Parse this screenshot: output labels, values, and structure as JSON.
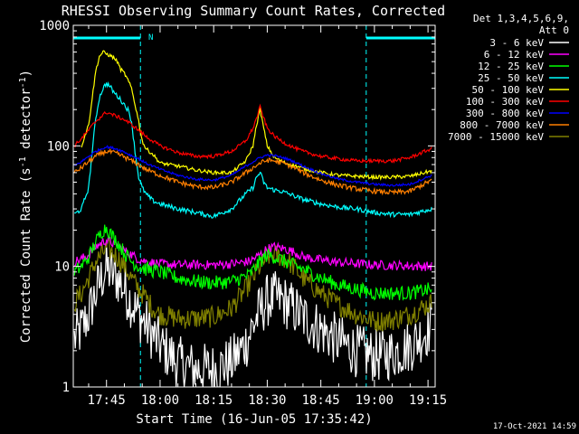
{
  "chart_data": {
    "type": "line",
    "title": "RHESSI Observing Summary Count Rates, Corrected",
    "xlabel": "Start Time (16-Jun-05 17:35:42)",
    "ylabel_main": "Corrected Count Rate (s",
    "ylabel_sup1": "-1",
    "ylabel_mid": " detector",
    "ylabel_sup2": "-1",
    "ylabel_end": ")",
    "y_scale": "log",
    "ylim": [
      1,
      1000
    ],
    "xlim_minutes": [
      1055.7,
      1157
    ],
    "grid": false,
    "x_ticks": [
      {
        "t": 1065,
        "label": "17:45"
      },
      {
        "t": 1080,
        "label": "18:00"
      },
      {
        "t": 1095,
        "label": "18:15"
      },
      {
        "t": 1110,
        "label": "18:30"
      },
      {
        "t": 1125,
        "label": "18:45"
      },
      {
        "t": 1140,
        "label": "19:00"
      },
      {
        "t": 1155,
        "label": "19:15"
      }
    ],
    "y_ticks": [
      {
        "v": 1,
        "label": "1"
      },
      {
        "v": 10,
        "label": "10"
      },
      {
        "v": 100,
        "label": "100"
      },
      {
        "v": 1000,
        "label": "1000"
      }
    ],
    "legend_header": [
      "Det 1,3,4,5,6,9,",
      "Att 0"
    ],
    "legend_placement": "right",
    "timestamp": "17-Oct-2021 14:59",
    "night_intervals": [
      [
        1055.7,
        1074.5
      ],
      [
        1137.7,
        1157
      ]
    ],
    "night_bar_color": "#00ffff",
    "saa_marker": {
      "t": 1075.7,
      "label": "N"
    },
    "series": [
      {
        "name": "3 - 6 keV",
        "color": "#ffffff",
        "x": [
          1056,
          1058,
          1060,
          1062,
          1064,
          1065,
          1066,
          1068,
          1070,
          1072,
          1074,
          1076,
          1078,
          1080,
          1085,
          1090,
          1095,
          1100,
          1104,
          1106,
          1108,
          1110,
          1112,
          1114,
          1116,
          1118,
          1120,
          1125,
          1130,
          1135,
          1140,
          1145,
          1150,
          1154,
          1156
        ],
        "y": [
          2.5,
          3,
          4,
          6,
          8.5,
          9.5,
          9,
          8,
          6.5,
          5,
          4,
          3.3,
          2.7,
          2.2,
          1.6,
          1.4,
          1.4,
          1.6,
          2.3,
          3.2,
          4.3,
          5.2,
          5.5,
          5.3,
          4.8,
          4.3,
          3.8,
          3,
          2.4,
          2,
          1.8,
          1.9,
          2.2,
          2.8,
          3.2
        ]
      },
      {
        "name": "6 - 12 keV",
        "color": "#ff00ff",
        "x": [
          1056,
          1058,
          1060,
          1062,
          1064,
          1065,
          1066,
          1068,
          1070,
          1072,
          1074,
          1076,
          1080,
          1085,
          1090,
          1095,
          1100,
          1105,
          1108,
          1110,
          1112,
          1115,
          1118,
          1120,
          1125,
          1130,
          1140,
          1150,
          1156
        ],
        "y": [
          11,
          11.5,
          12.5,
          14.5,
          16,
          16.5,
          16,
          15,
          13.5,
          12.5,
          11.5,
          11,
          10.5,
          10.3,
          10.3,
          10.3,
          10.5,
          11,
          12.5,
          14,
          14.5,
          14,
          13,
          12,
          11.3,
          10.8,
          10.3,
          10.1,
          10
        ]
      },
      {
        "name": "12 - 25 keV",
        "color": "#00ff00",
        "x": [
          1056,
          1058,
          1060,
          1062,
          1064,
          1065,
          1066,
          1068,
          1070,
          1072,
          1074,
          1076,
          1080,
          1085,
          1090,
          1095,
          1100,
          1105,
          1108,
          1110,
          1112,
          1115,
          1118,
          1120,
          1125,
          1130,
          1140,
          1150,
          1156
        ],
        "y": [
          9,
          10,
          12,
          16,
          20,
          21,
          19,
          16,
          13,
          11,
          10,
          9.5,
          9,
          8,
          7.5,
          7.3,
          7.5,
          8.5,
          11,
          12.5,
          12,
          11,
          10,
          9.5,
          8,
          7,
          6,
          6,
          6.5
        ]
      },
      {
        "name": "25 - 50 keV",
        "color": "#00ffff",
        "x": [
          1056,
          1058,
          1060,
          1061,
          1062,
          1063,
          1064,
          1065,
          1066,
          1067,
          1068,
          1069,
          1070,
          1071,
          1072,
          1073,
          1074,
          1075,
          1076,
          1078,
          1080,
          1085,
          1090,
          1095,
          1100,
          1104,
          1106,
          1107,
          1108,
          1109,
          1110,
          1112,
          1114,
          1116,
          1118,
          1120,
          1125,
          1130,
          1135,
          1140,
          1145,
          1150,
          1156
        ],
        "y": [
          27,
          30,
          45,
          90,
          170,
          250,
          300,
          330,
          310,
          280,
          260,
          240,
          220,
          200,
          160,
          90,
          55,
          45,
          40,
          35,
          33,
          30,
          28,
          26,
          30,
          40,
          45,
          55,
          60,
          50,
          45,
          43,
          42,
          40,
          38,
          36,
          33,
          31,
          30,
          28,
          27,
          27,
          30
        ]
      },
      {
        "name": "50 - 100 keV",
        "color": "#ffff00",
        "x": [
          1058,
          1060,
          1061,
          1062,
          1063,
          1064,
          1065,
          1066,
          1067,
          1068,
          1069,
          1070,
          1071,
          1072,
          1073,
          1074,
          1075,
          1076,
          1078,
          1080,
          1085,
          1090,
          1095,
          1100,
          1104,
          1106,
          1107,
          1108,
          1109,
          1110,
          1112,
          1115,
          1118,
          1120,
          1125,
          1130,
          1135,
          1140,
          1145,
          1150,
          1156
        ],
        "y": [
          100,
          150,
          250,
          420,
          550,
          600,
          580,
          560,
          540,
          500,
          430,
          400,
          350,
          300,
          220,
          160,
          110,
          95,
          85,
          72,
          68,
          63,
          60,
          60,
          75,
          100,
          150,
          200,
          140,
          100,
          80,
          72,
          68,
          65,
          60,
          57,
          56,
          55,
          55,
          56,
          62
        ]
      },
      {
        "name": "100 - 300 keV",
        "color": "#ff0000",
        "x": [
          1056,
          1058,
          1060,
          1062,
          1064,
          1065,
          1066,
          1068,
          1070,
          1072,
          1074,
          1076,
          1080,
          1085,
          1090,
          1095,
          1100,
          1104,
          1106,
          1107,
          1108,
          1109,
          1110,
          1112,
          1115,
          1118,
          1120,
          1125,
          1130,
          1135,
          1140,
          1145,
          1150,
          1156
        ],
        "y": [
          100,
          115,
          135,
          160,
          180,
          190,
          185,
          175,
          165,
          150,
          135,
          120,
          100,
          88,
          82,
          82,
          90,
          110,
          140,
          170,
          210,
          170,
          140,
          120,
          105,
          95,
          90,
          82,
          78,
          75,
          75,
          75,
          80,
          95
        ]
      },
      {
        "name": "300 - 800 keV",
        "color": "#0000ff",
        "x": [
          1056,
          1058,
          1060,
          1062,
          1064,
          1065,
          1066,
          1068,
          1070,
          1072,
          1074,
          1076,
          1080,
          1085,
          1090,
          1095,
          1100,
          1104,
          1108,
          1110,
          1112,
          1115,
          1118,
          1120,
          1125,
          1130,
          1135,
          1140,
          1145,
          1150,
          1156
        ],
        "y": [
          68,
          74,
          82,
          90,
          96,
          98,
          97,
          94,
          89,
          83,
          78,
          72,
          64,
          57,
          53,
          52,
          57,
          68,
          80,
          84,
          83,
          79,
          73,
          68,
          59,
          53,
          50,
          48,
          47,
          48,
          57
        ]
      },
      {
        "name": "800 - 7000 keV",
        "color": "#ff7f00",
        "x": [
          1056,
          1058,
          1060,
          1062,
          1064,
          1065,
          1066,
          1068,
          1070,
          1072,
          1074,
          1076,
          1080,
          1085,
          1090,
          1095,
          1100,
          1104,
          1108,
          1110,
          1112,
          1115,
          1118,
          1120,
          1125,
          1130,
          1135,
          1140,
          1145,
          1150,
          1156
        ],
        "y": [
          60,
          66,
          74,
          82,
          88,
          90,
          89,
          86,
          81,
          75,
          70,
          64,
          57,
          50,
          46,
          45,
          50,
          60,
          72,
          76,
          75,
          71,
          65,
          60,
          52,
          47,
          44,
          42,
          41,
          42,
          52
        ]
      },
      {
        "name": "7000 - 15000 keV",
        "color": "#808000",
        "x": [
          1056,
          1058,
          1060,
          1062,
          1064,
          1065,
          1066,
          1068,
          1070,
          1072,
          1074,
          1076,
          1078,
          1080,
          1085,
          1090,
          1095,
          1100,
          1104,
          1106,
          1108,
          1110,
          1112,
          1114,
          1116,
          1118,
          1120,
          1125,
          1130,
          1135,
          1140,
          1145,
          1150,
          1156
        ],
        "y": [
          5,
          6,
          8,
          11,
          13,
          14,
          13.5,
          12,
          10,
          8,
          6.5,
          5.5,
          4.5,
          4,
          3.7,
          3.7,
          3.8,
          4.5,
          6.5,
          8,
          10,
          12,
          12.5,
          12,
          11,
          9.5,
          8,
          6,
          4.8,
          4,
          3.5,
          3.6,
          4,
          5
        ]
      }
    ]
  }
}
